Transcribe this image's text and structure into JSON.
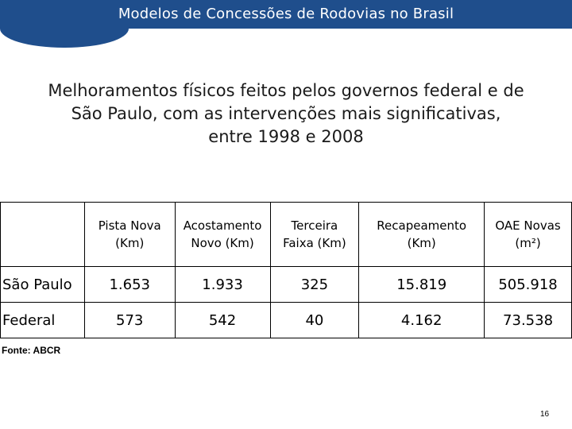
{
  "header": {
    "title": "Modelos de Concessões de Rodovias no Brasil"
  },
  "subtitle": {
    "line1": "Melhoramentos físicos feitos pelos governos federal e de",
    "line2": "São Paulo, com as intervenções mais significativas,",
    "line3": "entre 1998 e 2008"
  },
  "table": {
    "columns": [
      {
        "line1": "Pista Nova",
        "line2": "(Km)"
      },
      {
        "line1": "Acostamento",
        "line2": "Novo (Km)"
      },
      {
        "line1": "Terceira",
        "line2": "Faixa (Km)"
      },
      {
        "line1": "Recapeamento",
        "line2": "(Km)"
      },
      {
        "line1": "OAE Novas",
        "line2": "(m²)"
      }
    ],
    "rows": [
      {
        "label": "São Paulo",
        "values": [
          "1.653",
          "1.933",
          "325",
          "15.819",
          "505.918"
        ]
      },
      {
        "label": "Federal",
        "values": [
          "573",
          "542",
          "40",
          "4.162",
          "73.538"
        ]
      }
    ]
  },
  "source": "Fonte: ABCR",
  "page_number": "16",
  "colors": {
    "header_background": "#1f4e8c",
    "header_text": "#ffffff"
  }
}
